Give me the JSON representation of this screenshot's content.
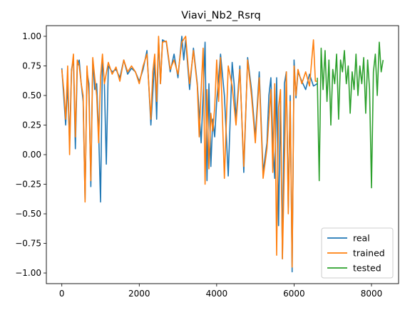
{
  "chart_data": {
    "type": "line",
    "title": "Viavi_Nb2_Rsrq",
    "xlabel": "",
    "ylabel": "",
    "xlim": [
      -400,
      8700
    ],
    "ylim": [
      -1.09,
      1.09
    ],
    "x_ticks": [
      0,
      2000,
      4000,
      6000,
      8000
    ],
    "x_tick_labels": [
      "0",
      "2000",
      "4000",
      "6000",
      "8000"
    ],
    "y_ticks": [
      1.0,
      0.75,
      0.5,
      0.25,
      0.0,
      -0.25,
      -0.5,
      -0.75,
      -1.0
    ],
    "y_tick_labels": [
      "1.00",
      "0.75",
      "0.50",
      "0.25",
      "0.00",
      "−0.25",
      "−0.50",
      "−0.75",
      "−1.00"
    ],
    "legend_position": "lower-right",
    "grid": false,
    "series": [
      {
        "name": "real",
        "color": "#1f77b4",
        "x": [
          0,
          100,
          150,
          200,
          250,
          300,
          350,
          400,
          450,
          500,
          550,
          600,
          650,
          700,
          750,
          800,
          850,
          900,
          950,
          1000,
          1050,
          1100,
          1150,
          1200,
          1300,
          1400,
          1500,
          1600,
          1700,
          1800,
          1900,
          2000,
          2100,
          2200,
          2300,
          2400,
          2450,
          2500,
          2550,
          2600,
          2700,
          2800,
          2900,
          3000,
          3100,
          3150,
          3200,
          3300,
          3400,
          3500,
          3600,
          3650,
          3700,
          3750,
          3800,
          3850,
          3900,
          3950,
          4000,
          4100,
          4200,
          4300,
          4400,
          4450,
          4500,
          4600,
          4700,
          4800,
          4900,
          5000,
          5100,
          5200,
          5300,
          5350,
          5400,
          5450,
          5500,
          5550,
          5600,
          5650,
          5700,
          5750,
          5800,
          5850,
          5900,
          5950,
          6000,
          6050,
          6100,
          6200,
          6300,
          6400,
          6500,
          6600
        ],
        "y": [
          0.73,
          0.25,
          0.6,
          0.1,
          0.72,
          0.8,
          0.05,
          0.75,
          0.8,
          0.6,
          0.45,
          -0.38,
          0.7,
          0.6,
          -0.27,
          0.8,
          0.55,
          0.6,
          0.2,
          -0.4,
          0.82,
          0.6,
          -0.08,
          0.75,
          0.7,
          0.72,
          0.65,
          0.8,
          0.68,
          0.73,
          0.7,
          0.62,
          0.72,
          0.88,
          0.25,
          0.8,
          0.3,
          0.98,
          0.6,
          0.97,
          0.95,
          0.7,
          0.85,
          0.65,
          1.0,
          0.8,
          0.97,
          0.55,
          0.9,
          0.6,
          0.1,
          0.5,
          0.95,
          -0.22,
          0.6,
          -0.1,
          0.3,
          0.15,
          0.45,
          0.85,
          0.5,
          -0.18,
          0.78,
          0.6,
          0.3,
          0.75,
          -0.15,
          0.82,
          0.55,
          0.15,
          0.7,
          -0.15,
          0.1,
          0.5,
          0.65,
          0.1,
          -0.2,
          0.65,
          -0.6,
          0.45,
          -0.88,
          0.6,
          0.7,
          -0.45,
          0.5,
          -0.99,
          0.8,
          0.48,
          0.7,
          0.62,
          0.55,
          0.68,
          0.58,
          0.6
        ]
      },
      {
        "name": "trained",
        "color": "#ff7f0e",
        "x": [
          0,
          50,
          100,
          150,
          200,
          250,
          300,
          350,
          400,
          450,
          500,
          550,
          600,
          650,
          700,
          750,
          800,
          850,
          900,
          950,
          1000,
          1050,
          1100,
          1200,
          1300,
          1400,
          1500,
          1600,
          1700,
          1800,
          1900,
          2000,
          2100,
          2200,
          2300,
          2350,
          2400,
          2450,
          2500,
          2550,
          2600,
          2700,
          2800,
          2900,
          3000,
          3100,
          3200,
          3300,
          3400,
          3500,
          3550,
          3600,
          3650,
          3700,
          3750,
          3800,
          3850,
          3900,
          3950,
          4000,
          4050,
          4100,
          4200,
          4300,
          4400,
          4500,
          4600,
          4700,
          4800,
          4900,
          5000,
          5100,
          5200,
          5300,
          5400,
          5450,
          5500,
          5550,
          5600,
          5650,
          5700,
          5800,
          5850,
          5900,
          5950,
          6000,
          6050,
          6100,
          6200,
          6300,
          6400,
          6500,
          6550,
          6600
        ],
        "y": [
          0.72,
          0.55,
          0.3,
          0.75,
          0.0,
          0.7,
          0.85,
          0.15,
          0.8,
          0.75,
          0.6,
          0.5,
          -0.4,
          0.75,
          0.5,
          -0.22,
          0.82,
          0.65,
          0.5,
          0.1,
          0.65,
          0.85,
          0.6,
          0.78,
          0.68,
          0.74,
          0.62,
          0.8,
          0.7,
          0.75,
          0.7,
          0.6,
          0.75,
          0.85,
          0.3,
          0.7,
          0.85,
          0.45,
          1.0,
          0.6,
          0.95,
          0.96,
          0.72,
          0.8,
          0.68,
          0.95,
          1.0,
          0.6,
          0.88,
          0.58,
          0.15,
          0.55,
          0.9,
          -0.25,
          0.55,
          -0.12,
          0.35,
          0.2,
          0.4,
          0.8,
          0.45,
          0.82,
          -0.2,
          0.75,
          0.58,
          0.25,
          0.72,
          -0.1,
          0.8,
          0.5,
          0.1,
          0.65,
          -0.2,
          0.05,
          0.55,
          -0.15,
          0.6,
          -0.85,
          0.4,
          0.55,
          -0.88,
          0.7,
          -0.5,
          0.45,
          -0.95,
          0.75,
          0.5,
          0.72,
          0.6,
          0.7,
          0.58,
          0.97,
          0.62,
          0.62
        ]
      },
      {
        "name": "tested",
        "color": "#2ca02c",
        "x": [
          6600,
          6650,
          6700,
          6750,
          6800,
          6850,
          6900,
          6950,
          7000,
          7050,
          7100,
          7150,
          7200,
          7250,
          7300,
          7350,
          7400,
          7450,
          7500,
          7550,
          7600,
          7650,
          7700,
          7750,
          7800,
          7850,
          7900,
          7950,
          8000,
          8050,
          8100,
          8150,
          8200,
          8250,
          8300
        ],
        "y": [
          0.65,
          -0.22,
          0.9,
          0.55,
          0.88,
          0.45,
          0.8,
          0.25,
          0.72,
          0.6,
          0.85,
          0.3,
          0.8,
          0.7,
          0.88,
          0.6,
          0.75,
          0.35,
          0.7,
          0.55,
          0.85,
          0.5,
          0.75,
          0.6,
          0.82,
          0.35,
          0.8,
          0.55,
          -0.28,
          0.7,
          0.85,
          0.5,
          0.95,
          0.7,
          0.8
        ]
      }
    ]
  }
}
